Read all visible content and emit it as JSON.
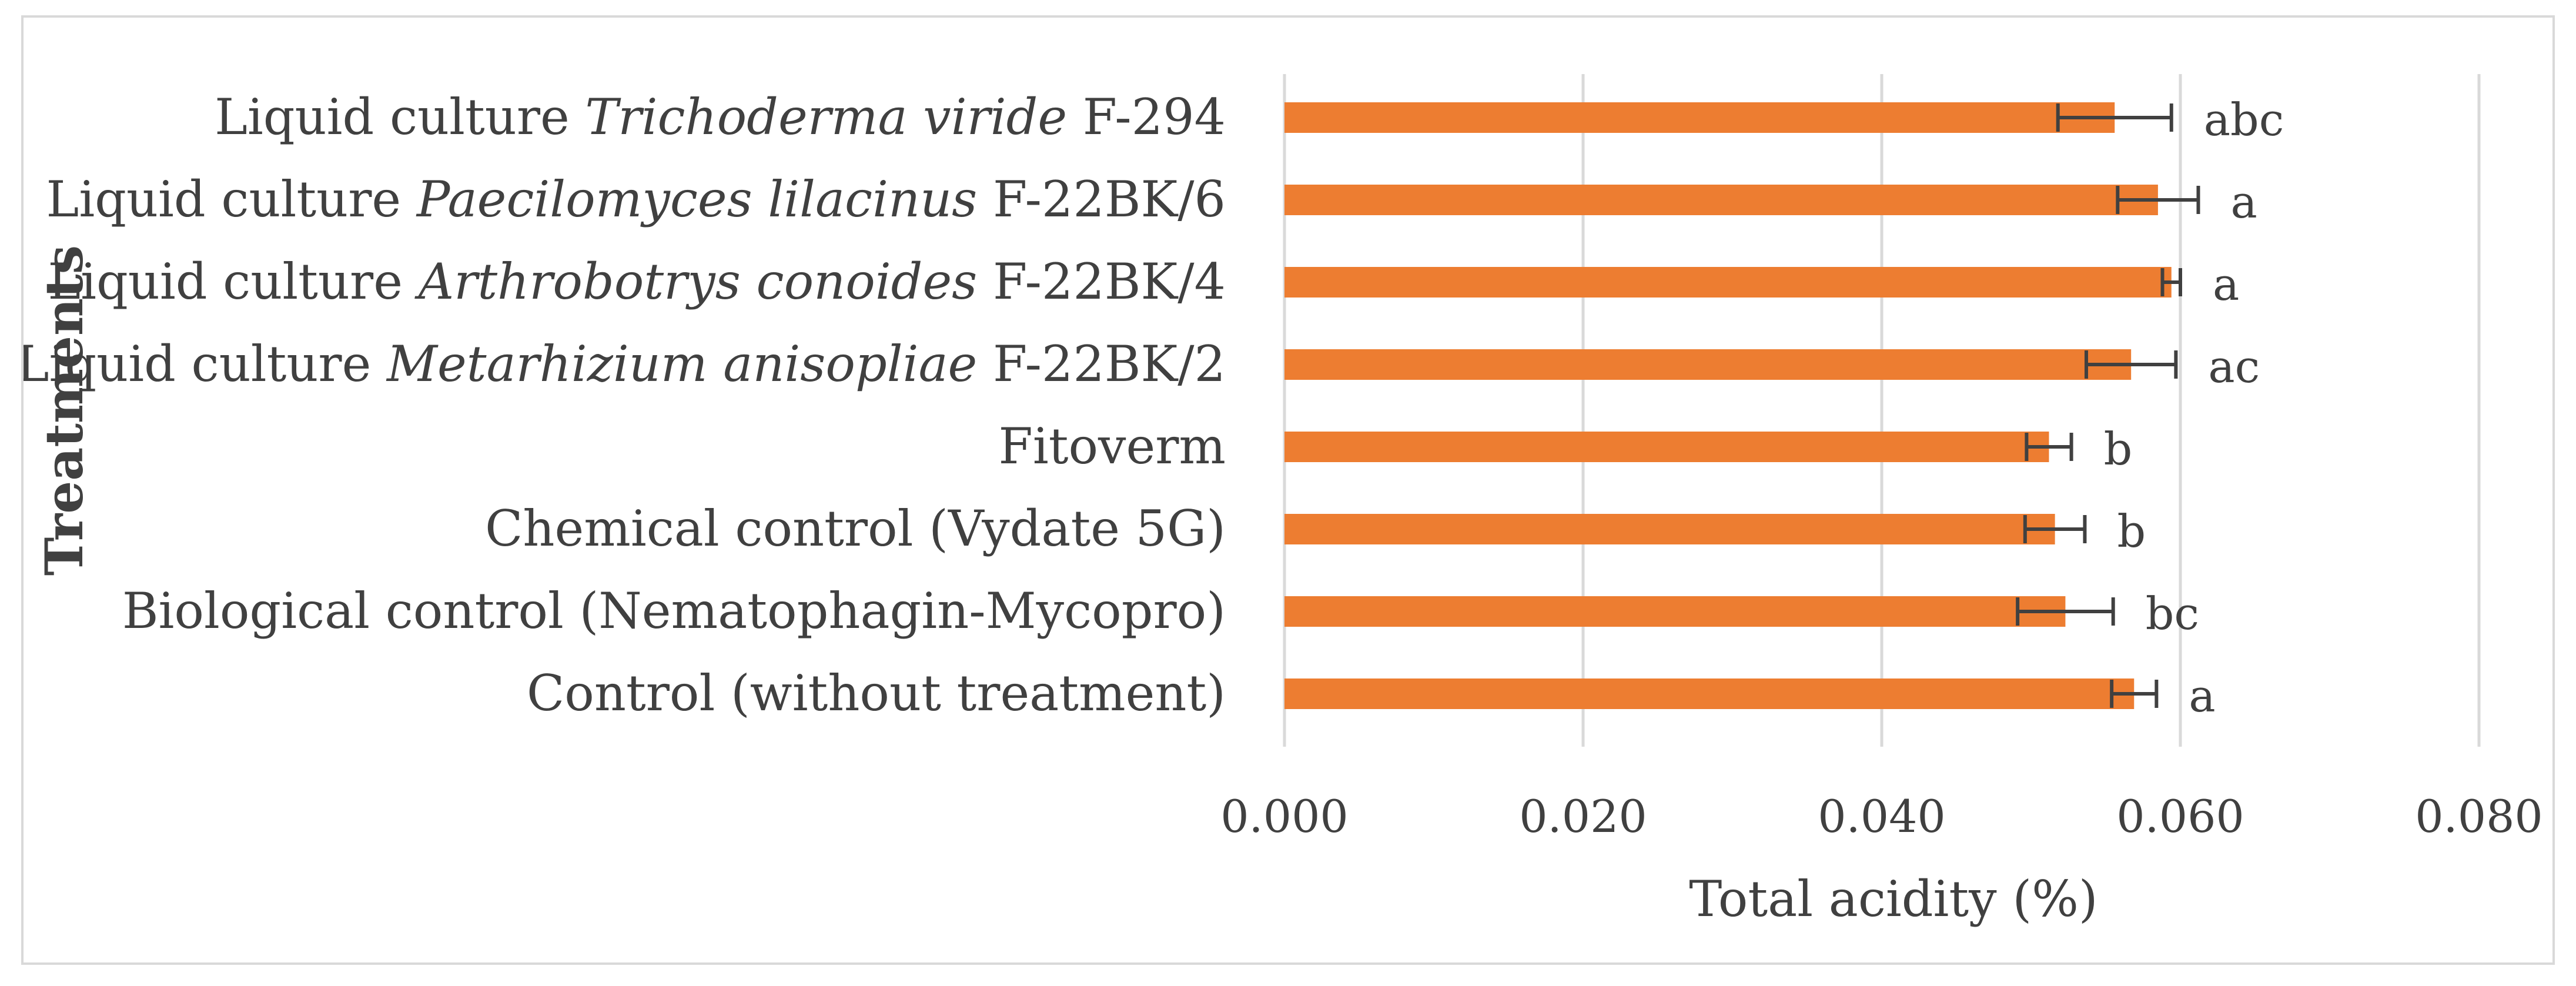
{
  "chart_data": {
    "type": "bar",
    "orientation": "horizontal",
    "title": "",
    "xlabel": "Total acidity (%)",
    "ylabel": "Treatments",
    "xlim": [
      0,
      0.08
    ],
    "xticks": [
      "0.000",
      "0.020",
      "0.040",
      "0.060",
      "0.080"
    ],
    "grid": true,
    "bar_color": "#ed7d31",
    "categories": [
      {
        "prefix": "Liquid culture ",
        "italic": "Trichoderma viride",
        "suffix": " F-294"
      },
      {
        "prefix": "Liquid culture ",
        "italic": "Paecilomyces lilacinus",
        "suffix": " F-22BK/6"
      },
      {
        "prefix": "Liquid culture ",
        "italic": "Arthrobotrys conoides",
        "suffix": " F-22BK/4"
      },
      {
        "prefix": "Liquid culture ",
        "italic": "Metarhizium anisopliae",
        "suffix": " F-22BK/2"
      },
      {
        "prefix": "Fitoverm",
        "italic": "",
        "suffix": ""
      },
      {
        "prefix": "Chemical control (Vydate 5G)",
        "italic": "",
        "suffix": ""
      },
      {
        "prefix": "Biological control (Nematophagin-Mycopro)",
        "italic": "",
        "suffix": ""
      },
      {
        "prefix": "Control (without treatment)",
        "italic": "",
        "suffix": ""
      }
    ],
    "values": [
      0.0556,
      0.0585,
      0.0594,
      0.0567,
      0.0512,
      0.0516,
      0.0523,
      0.0569
    ],
    "errors": [
      0.0038,
      0.0027,
      0.0006,
      0.003,
      0.0015,
      0.002,
      0.0032,
      0.0015
    ],
    "letters": [
      "abc",
      "a",
      "a",
      "ac",
      "b",
      "b",
      "bc",
      "a"
    ]
  }
}
